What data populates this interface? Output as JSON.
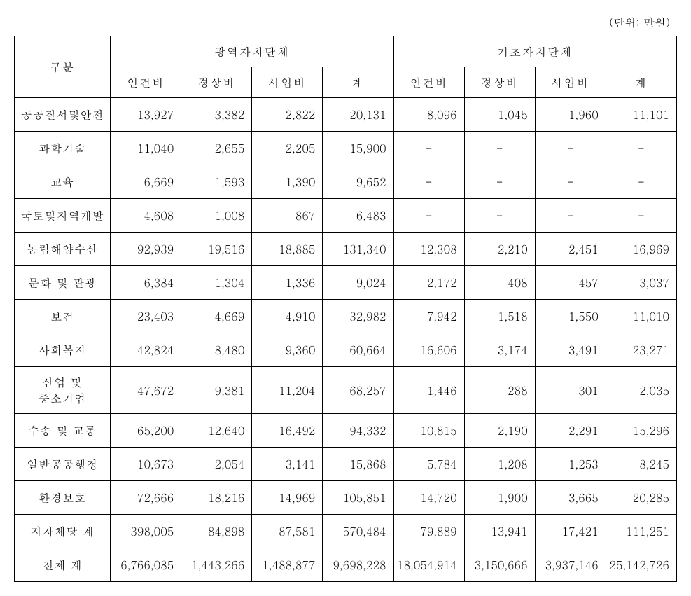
{
  "unit_label": "(단위: 만원)",
  "headers": {
    "category": "구분",
    "group1": "광역자치단체",
    "group2": "기초자치단체",
    "col1": "인건비",
    "col2": "경상비",
    "col3": "사업비",
    "col4": "계",
    "col5": "인건비",
    "col6": "경상비",
    "col7": "사업비",
    "col8": "계"
  },
  "rows": {
    "r0": {
      "label": "공공질서및안전",
      "c1": "13,927",
      "c2": "3,382",
      "c3": "2,822",
      "c4": "20,131",
      "c5": "8,096",
      "c6": "1,045",
      "c7": "1,960",
      "c8": "11,101"
    },
    "r1": {
      "label": "과학기술",
      "c1": "11,040",
      "c2": "2,655",
      "c3": "2,205",
      "c4": "15,900",
      "c5": "-",
      "c6": "-",
      "c7": "-",
      "c8": "-"
    },
    "r2": {
      "label": "교육",
      "c1": "6,669",
      "c2": "1,593",
      "c3": "1,390",
      "c4": "9,652",
      "c5": "-",
      "c6": "-",
      "c7": "-",
      "c8": "-"
    },
    "r3": {
      "label": "국토및지역개발",
      "c1": "4,608",
      "c2": "1,008",
      "c3": "867",
      "c4": "6,483",
      "c5": "-",
      "c6": "-",
      "c7": "-",
      "c8": "-"
    },
    "r4": {
      "label": "농림해양수산",
      "c1": "92,939",
      "c2": "19,516",
      "c3": "18,885",
      "c4": "131,340",
      "c5": "12,308",
      "c6": "2,210",
      "c7": "2,451",
      "c8": "16,969"
    },
    "r5": {
      "label": "문화 및 관광",
      "c1": "6,384",
      "c2": "1,304",
      "c3": "1,336",
      "c4": "9,024",
      "c5": "2,172",
      "c6": "408",
      "c7": "457",
      "c8": "3,037"
    },
    "r6": {
      "label": "보건",
      "c1": "23,403",
      "c2": "4,669",
      "c3": "4,910",
      "c4": "32,982",
      "c5": "7,942",
      "c6": "1,518",
      "c7": "1,550",
      "c8": "11,010"
    },
    "r7": {
      "label": "사회복지",
      "c1": "42,824",
      "c2": "8,480",
      "c3": "9,360",
      "c4": "60,664",
      "c5": "16,606",
      "c6": "3,174",
      "c7": "3,491",
      "c8": "23,271"
    },
    "r8": {
      "label": "산업 및\n중소기업",
      "c1": "47,672",
      "c2": "9,381",
      "c3": "11,204",
      "c4": "68,257",
      "c5": "1,446",
      "c6": "288",
      "c7": "301",
      "c8": "2,035"
    },
    "r9": {
      "label": "수송 및 교통",
      "c1": "65,200",
      "c2": "12,640",
      "c3": "16,492",
      "c4": "94,332",
      "c5": "10,815",
      "c6": "2,190",
      "c7": "2,291",
      "c8": "15,296"
    },
    "r10": {
      "label": "일반공공행정",
      "c1": "10,673",
      "c2": "2,054",
      "c3": "3,141",
      "c4": "15,868",
      "c5": "5,784",
      "c6": "1,208",
      "c7": "1,253",
      "c8": "8,245"
    },
    "r11": {
      "label": "환경보호",
      "c1": "72,666",
      "c2": "18,216",
      "c3": "14,969",
      "c4": "105,851",
      "c5": "14,720",
      "c6": "1,900",
      "c7": "3,665",
      "c8": "20,285"
    },
    "r12": {
      "label": "지자체당 계",
      "c1": "398,005",
      "c2": "84,898",
      "c3": "87,581",
      "c4": "570,484",
      "c5": "79,889",
      "c6": "13,941",
      "c7": "17,421",
      "c8": "111,251"
    },
    "r13": {
      "label": "전체 계",
      "c1": "6,766,085",
      "c2": "1,443,266",
      "c3": "1,488,877",
      "c4": "9,698,228",
      "c5": "18,054,914",
      "c6": "3,150,666",
      "c7": "3,937,146",
      "c8": "25,142,726"
    }
  },
  "style": {
    "font_family": "Batang, serif",
    "border_color": "#000000",
    "background_color": "#ffffff",
    "text_color": "#000000",
    "font_size_body": 16,
    "font_size_unit": 16,
    "cell_text_align_label": "center",
    "cell_text_align_num": "right"
  }
}
